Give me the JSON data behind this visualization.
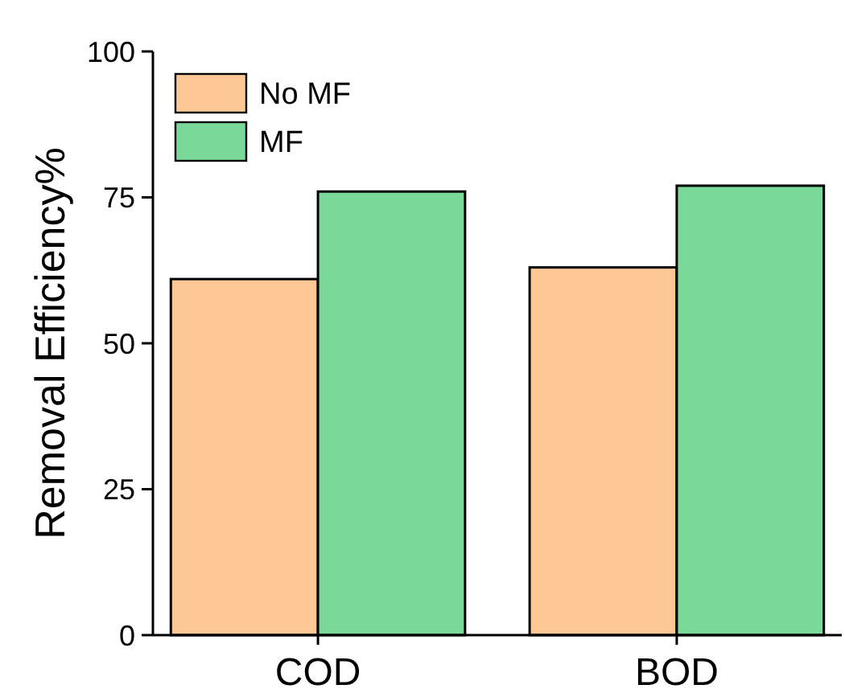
{
  "chart_data": {
    "type": "bar",
    "ylabel": "Removal Efficiency%",
    "categories": [
      "COD",
      "BOD"
    ],
    "series": [
      {
        "name": "No MF",
        "color": "#fdc896",
        "values": [
          61,
          63
        ]
      },
      {
        "name": "MF",
        "color": "#7ad898",
        "values": [
          76,
          77
        ]
      }
    ],
    "ylim": [
      0,
      100
    ],
    "yticks": [
      0,
      25,
      50,
      75,
      100
    ],
    "grid": false,
    "legend": "top left"
  }
}
